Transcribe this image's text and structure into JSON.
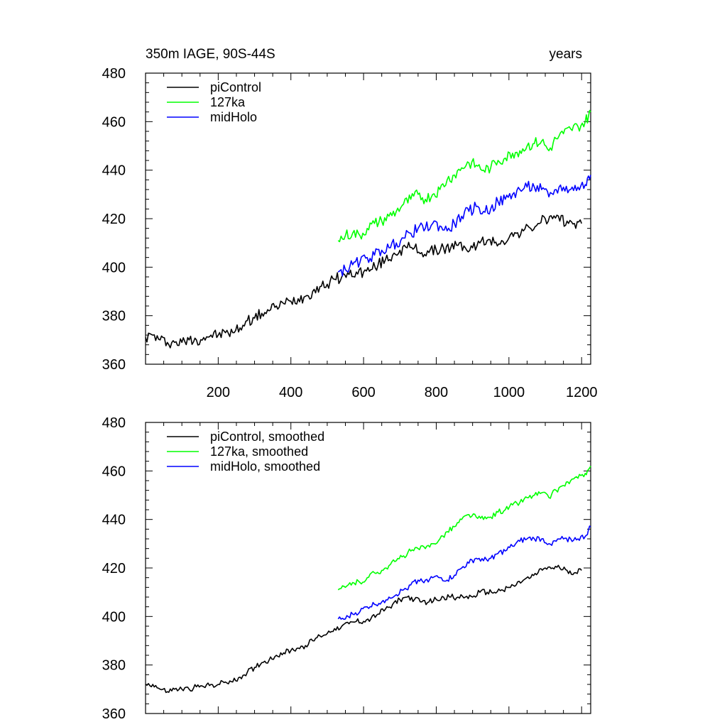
{
  "figure": {
    "left_string": "350m IAGE, 90S-44S",
    "right_string": "years"
  },
  "chart_data": [
    {
      "type": "line",
      "title": "",
      "xlabel": "",
      "ylabel": "",
      "xlim": [
        0,
        1225
      ],
      "ylim": [
        360,
        480
      ],
      "xticks": [
        200,
        400,
        600,
        800,
        1000,
        1200
      ],
      "yticks": [
        360,
        380,
        400,
        420,
        440,
        460,
        480
      ],
      "x_tick_labels_shown": true,
      "legend_placement": "top-left",
      "grid": false,
      "series": [
        {
          "name": "piControl",
          "color": "#000000",
          "x": [
            0,
            20,
            40,
            60,
            80,
            100,
            120,
            140,
            160,
            180,
            200,
            220,
            240,
            260,
            280,
            300,
            320,
            340,
            360,
            380,
            400,
            420,
            440,
            460,
            480,
            500,
            520,
            540,
            560,
            580,
            600,
            620,
            640,
            660,
            680,
            700,
            720,
            740,
            760,
            780,
            800,
            820,
            840,
            860,
            880,
            900,
            920,
            940,
            960,
            980,
            1000,
            1020,
            1040,
            1060,
            1080,
            1100,
            1120,
            1140,
            1160,
            1180,
            1200
          ],
          "values": [
            371,
            372,
            370,
            369,
            369,
            369,
            370,
            370,
            371,
            372,
            372,
            373,
            373,
            375,
            378,
            379,
            381,
            382,
            384,
            385,
            386,
            387,
            388,
            390,
            392,
            393,
            395,
            396,
            397,
            398,
            398,
            399,
            401,
            403,
            405,
            407,
            408,
            408,
            406,
            406,
            407,
            408,
            408,
            409,
            408,
            408,
            410,
            411,
            410,
            411,
            412,
            414,
            415,
            416,
            418,
            420,
            420,
            419,
            419,
            418,
            418
          ]
        },
        {
          "name": "127ka",
          "color": "#00ff00",
          "x": [
            530,
            550,
            570,
            590,
            610,
            630,
            650,
            670,
            690,
            710,
            730,
            750,
            770,
            790,
            810,
            830,
            850,
            870,
            890,
            910,
            930,
            950,
            970,
            990,
            1010,
            1030,
            1050,
            1070,
            1090,
            1110,
            1130,
            1150,
            1170,
            1190,
            1210,
            1225
          ],
          "values": [
            411,
            413,
            414,
            413,
            416,
            418,
            419,
            421,
            423,
            426,
            428,
            430,
            428,
            430,
            432,
            436,
            438,
            441,
            443,
            442,
            440,
            441,
            444,
            445,
            447,
            448,
            450,
            451,
            452,
            448,
            453,
            455,
            457,
            458,
            460,
            464
          ]
        },
        {
          "name": "midHolo",
          "color": "#0000ff",
          "x": [
            530,
            550,
            570,
            590,
            610,
            630,
            650,
            670,
            690,
            710,
            730,
            750,
            770,
            790,
            810,
            830,
            850,
            870,
            890,
            910,
            930,
            950,
            970,
            990,
            1010,
            1030,
            1050,
            1070,
            1090,
            1110,
            1130,
            1150,
            1170,
            1190,
            1210,
            1225
          ],
          "values": [
            398,
            399,
            401,
            402,
            404,
            405,
            407,
            408,
            410,
            412,
            414,
            416,
            416,
            418,
            417,
            415,
            418,
            421,
            423,
            425,
            423,
            424,
            427,
            428,
            430,
            432,
            433,
            433,
            432,
            429,
            432,
            433,
            432,
            433,
            434,
            438
          ]
        }
      ]
    },
    {
      "type": "line",
      "title": "",
      "xlabel": "",
      "ylabel": "",
      "xlim": [
        0,
        1225
      ],
      "ylim": [
        360,
        480
      ],
      "xticks": [
        200,
        400,
        600,
        800,
        1000,
        1200
      ],
      "yticks": [
        360,
        380,
        400,
        420,
        440,
        460,
        480
      ],
      "x_tick_labels_shown": false,
      "legend_placement": "top-left",
      "grid": false,
      "series": [
        {
          "name": "piControl, smoothed",
          "color": "#000000",
          "x": [
            0,
            20,
            40,
            60,
            80,
            100,
            120,
            140,
            160,
            180,
            200,
            220,
            240,
            260,
            280,
            300,
            320,
            340,
            360,
            380,
            400,
            420,
            440,
            460,
            480,
            500,
            520,
            540,
            560,
            580,
            600,
            620,
            640,
            660,
            680,
            700,
            720,
            740,
            760,
            780,
            800,
            820,
            840,
            860,
            880,
            900,
            920,
            940,
            960,
            980,
            1000,
            1020,
            1040,
            1060,
            1080,
            1100,
            1120,
            1140,
            1160,
            1180,
            1200
          ],
          "values": [
            372,
            372,
            370,
            369,
            370,
            370,
            370,
            371,
            371,
            372,
            372,
            373,
            373,
            375,
            377,
            379,
            381,
            382,
            384,
            385,
            386,
            387,
            388,
            390,
            392,
            393,
            395,
            396,
            397,
            398,
            398,
            399,
            401,
            403,
            405,
            407,
            408,
            407,
            406,
            406,
            407,
            408,
            408,
            408,
            408,
            408,
            410,
            410,
            410,
            411,
            412,
            413,
            415,
            416,
            418,
            420,
            420,
            420,
            419,
            418,
            419
          ]
        },
        {
          "name": "127ka, smoothed",
          "color": "#00ff00",
          "x": [
            530,
            550,
            570,
            590,
            610,
            630,
            650,
            670,
            690,
            710,
            730,
            750,
            770,
            790,
            810,
            830,
            850,
            870,
            890,
            910,
            930,
            950,
            970,
            990,
            1010,
            1030,
            1050,
            1070,
            1090,
            1110,
            1130,
            1150,
            1170,
            1190,
            1210,
            1225
          ],
          "values": [
            411,
            412,
            414,
            414,
            416,
            418,
            419,
            421,
            423,
            425,
            427,
            428,
            428,
            430,
            432,
            435,
            437,
            440,
            442,
            441,
            440,
            441,
            443,
            444,
            446,
            447,
            449,
            450,
            451,
            449,
            452,
            454,
            456,
            457,
            459,
            462
          ]
        },
        {
          "name": "midHolo, smoothed",
          "color": "#0000ff",
          "x": [
            530,
            550,
            570,
            590,
            610,
            630,
            650,
            670,
            690,
            710,
            730,
            750,
            770,
            790,
            810,
            830,
            850,
            870,
            890,
            910,
            930,
            950,
            970,
            990,
            1010,
            1030,
            1050,
            1070,
            1090,
            1110,
            1130,
            1150,
            1170,
            1190,
            1210,
            1225
          ],
          "values": [
            399,
            399,
            401,
            402,
            404,
            405,
            406,
            408,
            409,
            411,
            413,
            415,
            415,
            416,
            416,
            415,
            417,
            420,
            422,
            424,
            423,
            424,
            426,
            427,
            429,
            431,
            432,
            432,
            432,
            430,
            431,
            432,
            432,
            432,
            433,
            437
          ]
        }
      ]
    }
  ]
}
